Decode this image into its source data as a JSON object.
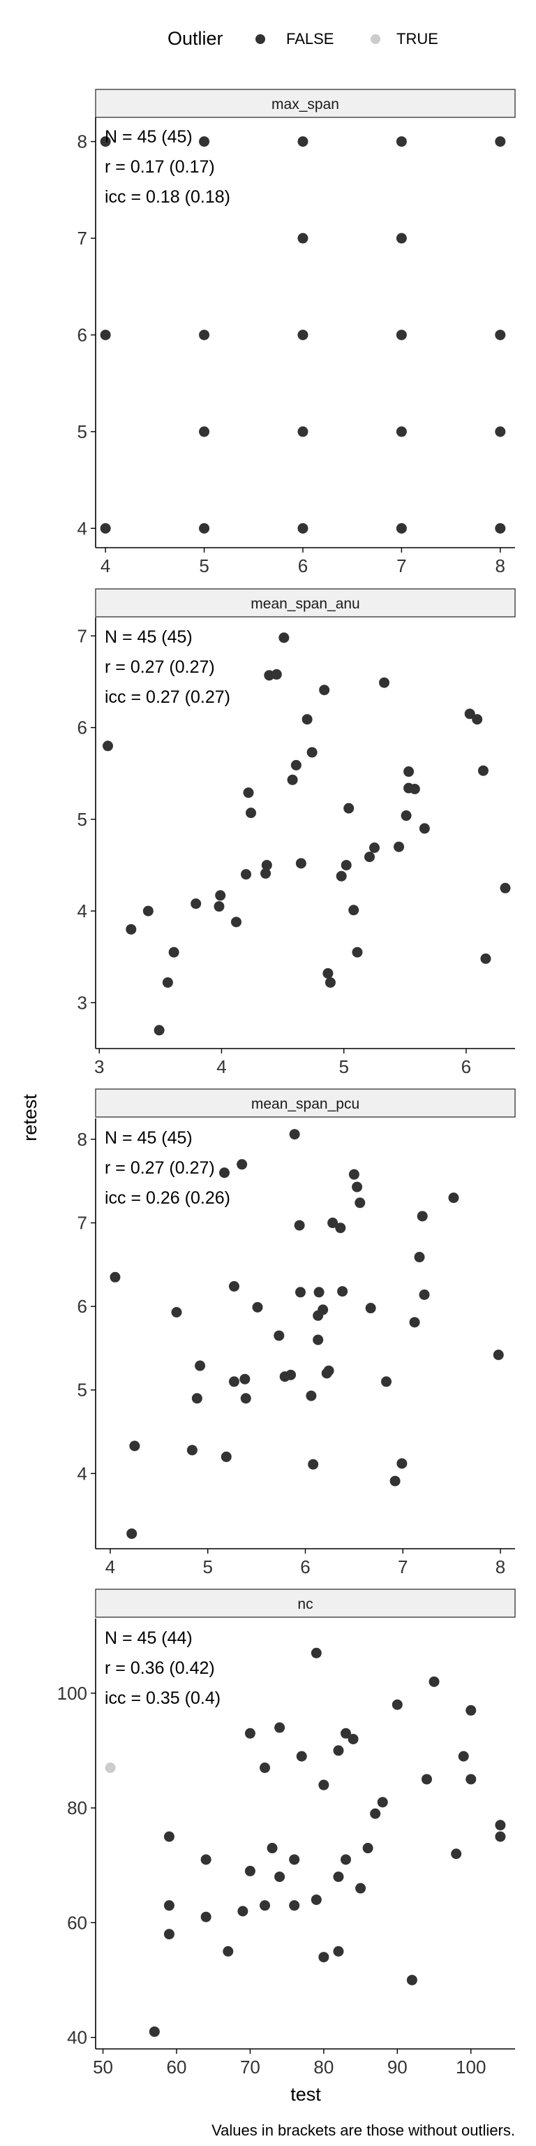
{
  "legend": {
    "title": "Outlier",
    "position": "top",
    "entries": [
      {
        "label": "FALSE",
        "color": "#333333"
      },
      {
        "label": "TRUE",
        "color": "#cccccc"
      }
    ]
  },
  "shared_axes": {
    "xlabel": "test",
    "ylabel": "retest"
  },
  "caption": "Values in brackets are those without outliers.",
  "colors": {
    "strip_fill": "#f0f0f0",
    "strip_border": "#333333",
    "axis": "#000000",
    "point_normal": "#333333",
    "point_outlier": "#cccccc"
  },
  "chart_data": [
    {
      "type": "scatter",
      "title": "max_span",
      "stats": [
        "N = 45 (45)",
        "r = 0.17 (0.17)",
        "icc = 0.18 (0.18)"
      ],
      "xlim": [
        3.9,
        8.15
      ],
      "ylim": [
        3.8,
        8.25
      ],
      "xticks": [
        4,
        5,
        6,
        7,
        8
      ],
      "yticks": [
        4,
        5,
        6,
        7,
        8
      ],
      "grid": false,
      "points": [
        [
          4,
          8
        ],
        [
          5,
          8
        ],
        [
          6,
          8
        ],
        [
          7,
          8
        ],
        [
          8,
          8
        ],
        [
          6,
          7
        ],
        [
          7,
          7
        ],
        [
          4,
          6
        ],
        [
          5,
          6
        ],
        [
          6,
          6
        ],
        [
          7,
          6
        ],
        [
          8,
          6
        ],
        [
          5,
          5
        ],
        [
          6,
          5
        ],
        [
          7,
          5
        ],
        [
          8,
          5
        ],
        [
          4,
          4
        ],
        [
          5,
          4
        ],
        [
          6,
          4
        ],
        [
          7,
          4
        ],
        [
          8,
          4
        ]
      ],
      "outliers": []
    },
    {
      "type": "scatter",
      "title": "mean_span_anu",
      "stats": [
        "N = 45 (45)",
        "r = 0.27 (0.27)",
        "icc = 0.27 (0.27)"
      ],
      "xlim": [
        2.97,
        6.4
      ],
      "ylim": [
        2.5,
        7.2
      ],
      "xticks": [
        3,
        4,
        5,
        6
      ],
      "yticks": [
        3,
        4,
        5,
        6,
        7
      ],
      "grid": false,
      "points": [
        [
          3.07,
          5.8
        ],
        [
          3.26,
          3.8
        ],
        [
          3.4,
          4.0
        ],
        [
          3.49,
          2.7
        ],
        [
          3.56,
          3.22
        ],
        [
          3.61,
          3.55
        ],
        [
          3.79,
          4.08
        ],
        [
          3.98,
          4.05
        ],
        [
          3.99,
          4.17
        ],
        [
          4.12,
          3.88
        ],
        [
          4.2,
          4.4
        ],
        [
          4.22,
          5.29
        ],
        [
          4.24,
          5.07
        ],
        [
          4.36,
          4.41
        ],
        [
          4.37,
          4.5
        ],
        [
          4.39,
          6.57
        ],
        [
          4.45,
          6.58
        ],
        [
          4.51,
          6.98
        ],
        [
          4.58,
          5.43
        ],
        [
          4.61,
          5.59
        ],
        [
          4.65,
          4.52
        ],
        [
          4.7,
          6.09
        ],
        [
          4.74,
          5.73
        ],
        [
          4.84,
          6.41
        ],
        [
          4.87,
          3.32
        ],
        [
          4.89,
          3.22
        ],
        [
          4.98,
          4.38
        ],
        [
          5.02,
          4.5
        ],
        [
          5.04,
          5.12
        ],
        [
          5.08,
          4.01
        ],
        [
          5.11,
          3.55
        ],
        [
          5.21,
          4.59
        ],
        [
          5.25,
          4.69
        ],
        [
          5.33,
          6.49
        ],
        [
          5.45,
          4.7
        ],
        [
          5.51,
          5.04
        ],
        [
          5.53,
          5.52
        ],
        [
          5.53,
          5.34
        ],
        [
          5.58,
          5.33
        ],
        [
          5.66,
          4.9
        ],
        [
          6.03,
          6.15
        ],
        [
          6.09,
          6.09
        ],
        [
          6.14,
          5.53
        ],
        [
          6.16,
          3.48
        ],
        [
          6.32,
          4.25
        ]
      ],
      "outliers": []
    },
    {
      "type": "scatter",
      "title": "mean_span_pcu",
      "stats": [
        "N = 45 (45)",
        "r = 0.27 (0.27)",
        "icc = 0.26 (0.26)"
      ],
      "xlim": [
        3.85,
        8.15
      ],
      "ylim": [
        3.1,
        8.25
      ],
      "xticks": [
        4,
        5,
        6,
        7,
        8
      ],
      "yticks": [
        4,
        5,
        6,
        7,
        8
      ],
      "grid": false,
      "points": [
        [
          4.05,
          6.35
        ],
        [
          4.22,
          3.28
        ],
        [
          4.25,
          4.33
        ],
        [
          4.68,
          5.93
        ],
        [
          4.84,
          4.28
        ],
        [
          4.89,
          4.9
        ],
        [
          4.92,
          5.29
        ],
        [
          5.17,
          7.6
        ],
        [
          5.19,
          4.2
        ],
        [
          5.27,
          5.1
        ],
        [
          5.27,
          6.24
        ],
        [
          5.35,
          7.7
        ],
        [
          5.38,
          5.13
        ],
        [
          5.39,
          4.9
        ],
        [
          5.51,
          5.99
        ],
        [
          5.73,
          5.65
        ],
        [
          5.79,
          5.16
        ],
        [
          5.85,
          5.18
        ],
        [
          5.89,
          8.06
        ],
        [
          5.94,
          6.97
        ],
        [
          5.95,
          6.17
        ],
        [
          6.06,
          4.93
        ],
        [
          6.08,
          4.11
        ],
        [
          6.13,
          5.6
        ],
        [
          6.13,
          5.89
        ],
        [
          6.14,
          6.17
        ],
        [
          6.18,
          5.96
        ],
        [
          6.22,
          5.2
        ],
        [
          6.24,
          5.23
        ],
        [
          6.28,
          7.0
        ],
        [
          6.36,
          6.94
        ],
        [
          6.38,
          6.18
        ],
        [
          6.5,
          7.58
        ],
        [
          6.53,
          7.43
        ],
        [
          6.56,
          7.24
        ],
        [
          6.67,
          5.98
        ],
        [
          6.83,
          5.1
        ],
        [
          6.92,
          3.91
        ],
        [
          6.99,
          4.12
        ],
        [
          7.12,
          5.81
        ],
        [
          7.17,
          6.59
        ],
        [
          7.2,
          7.08
        ],
        [
          7.22,
          6.14
        ],
        [
          7.52,
          7.3
        ],
        [
          7.98,
          5.42
        ]
      ],
      "outliers": []
    },
    {
      "type": "scatter",
      "title": "nc",
      "stats": [
        "N = 45 (44)",
        "r = 0.36 (0.42)",
        "icc = 0.35 (0.4)"
      ],
      "xlim": [
        49,
        106
      ],
      "ylim": [
        38,
        113
      ],
      "xticks": [
        50,
        60,
        70,
        80,
        90,
        100
      ],
      "yticks": [
        40,
        60,
        80,
        100
      ],
      "grid": false,
      "points": [
        [
          57,
          41
        ],
        [
          59,
          75
        ],
        [
          59,
          63
        ],
        [
          59,
          58
        ],
        [
          64,
          71
        ],
        [
          64,
          61
        ],
        [
          67,
          55
        ],
        [
          69,
          62
        ],
        [
          70,
          93
        ],
        [
          70,
          69
        ],
        [
          72,
          87
        ],
        [
          72,
          63
        ],
        [
          73,
          73
        ],
        [
          74,
          94
        ],
        [
          74,
          68
        ],
        [
          76,
          71
        ],
        [
          76,
          63
        ],
        [
          77,
          89
        ],
        [
          79,
          107
        ],
        [
          79,
          64
        ],
        [
          80,
          84
        ],
        [
          80,
          54
        ],
        [
          82,
          90
        ],
        [
          82,
          68
        ],
        [
          82,
          55
        ],
        [
          83,
          93
        ],
        [
          83,
          71
        ],
        [
          84,
          92
        ],
        [
          85,
          66
        ],
        [
          86,
          73
        ],
        [
          87,
          79
        ],
        [
          88,
          81
        ],
        [
          90,
          98
        ],
        [
          92,
          50
        ],
        [
          94,
          85
        ],
        [
          95,
          102
        ],
        [
          98,
          72
        ],
        [
          99,
          89
        ],
        [
          100,
          97
        ],
        [
          100,
          85
        ],
        [
          104,
          77
        ],
        [
          104,
          75
        ]
      ],
      "outliers": [
        [
          51,
          87
        ]
      ]
    }
  ]
}
